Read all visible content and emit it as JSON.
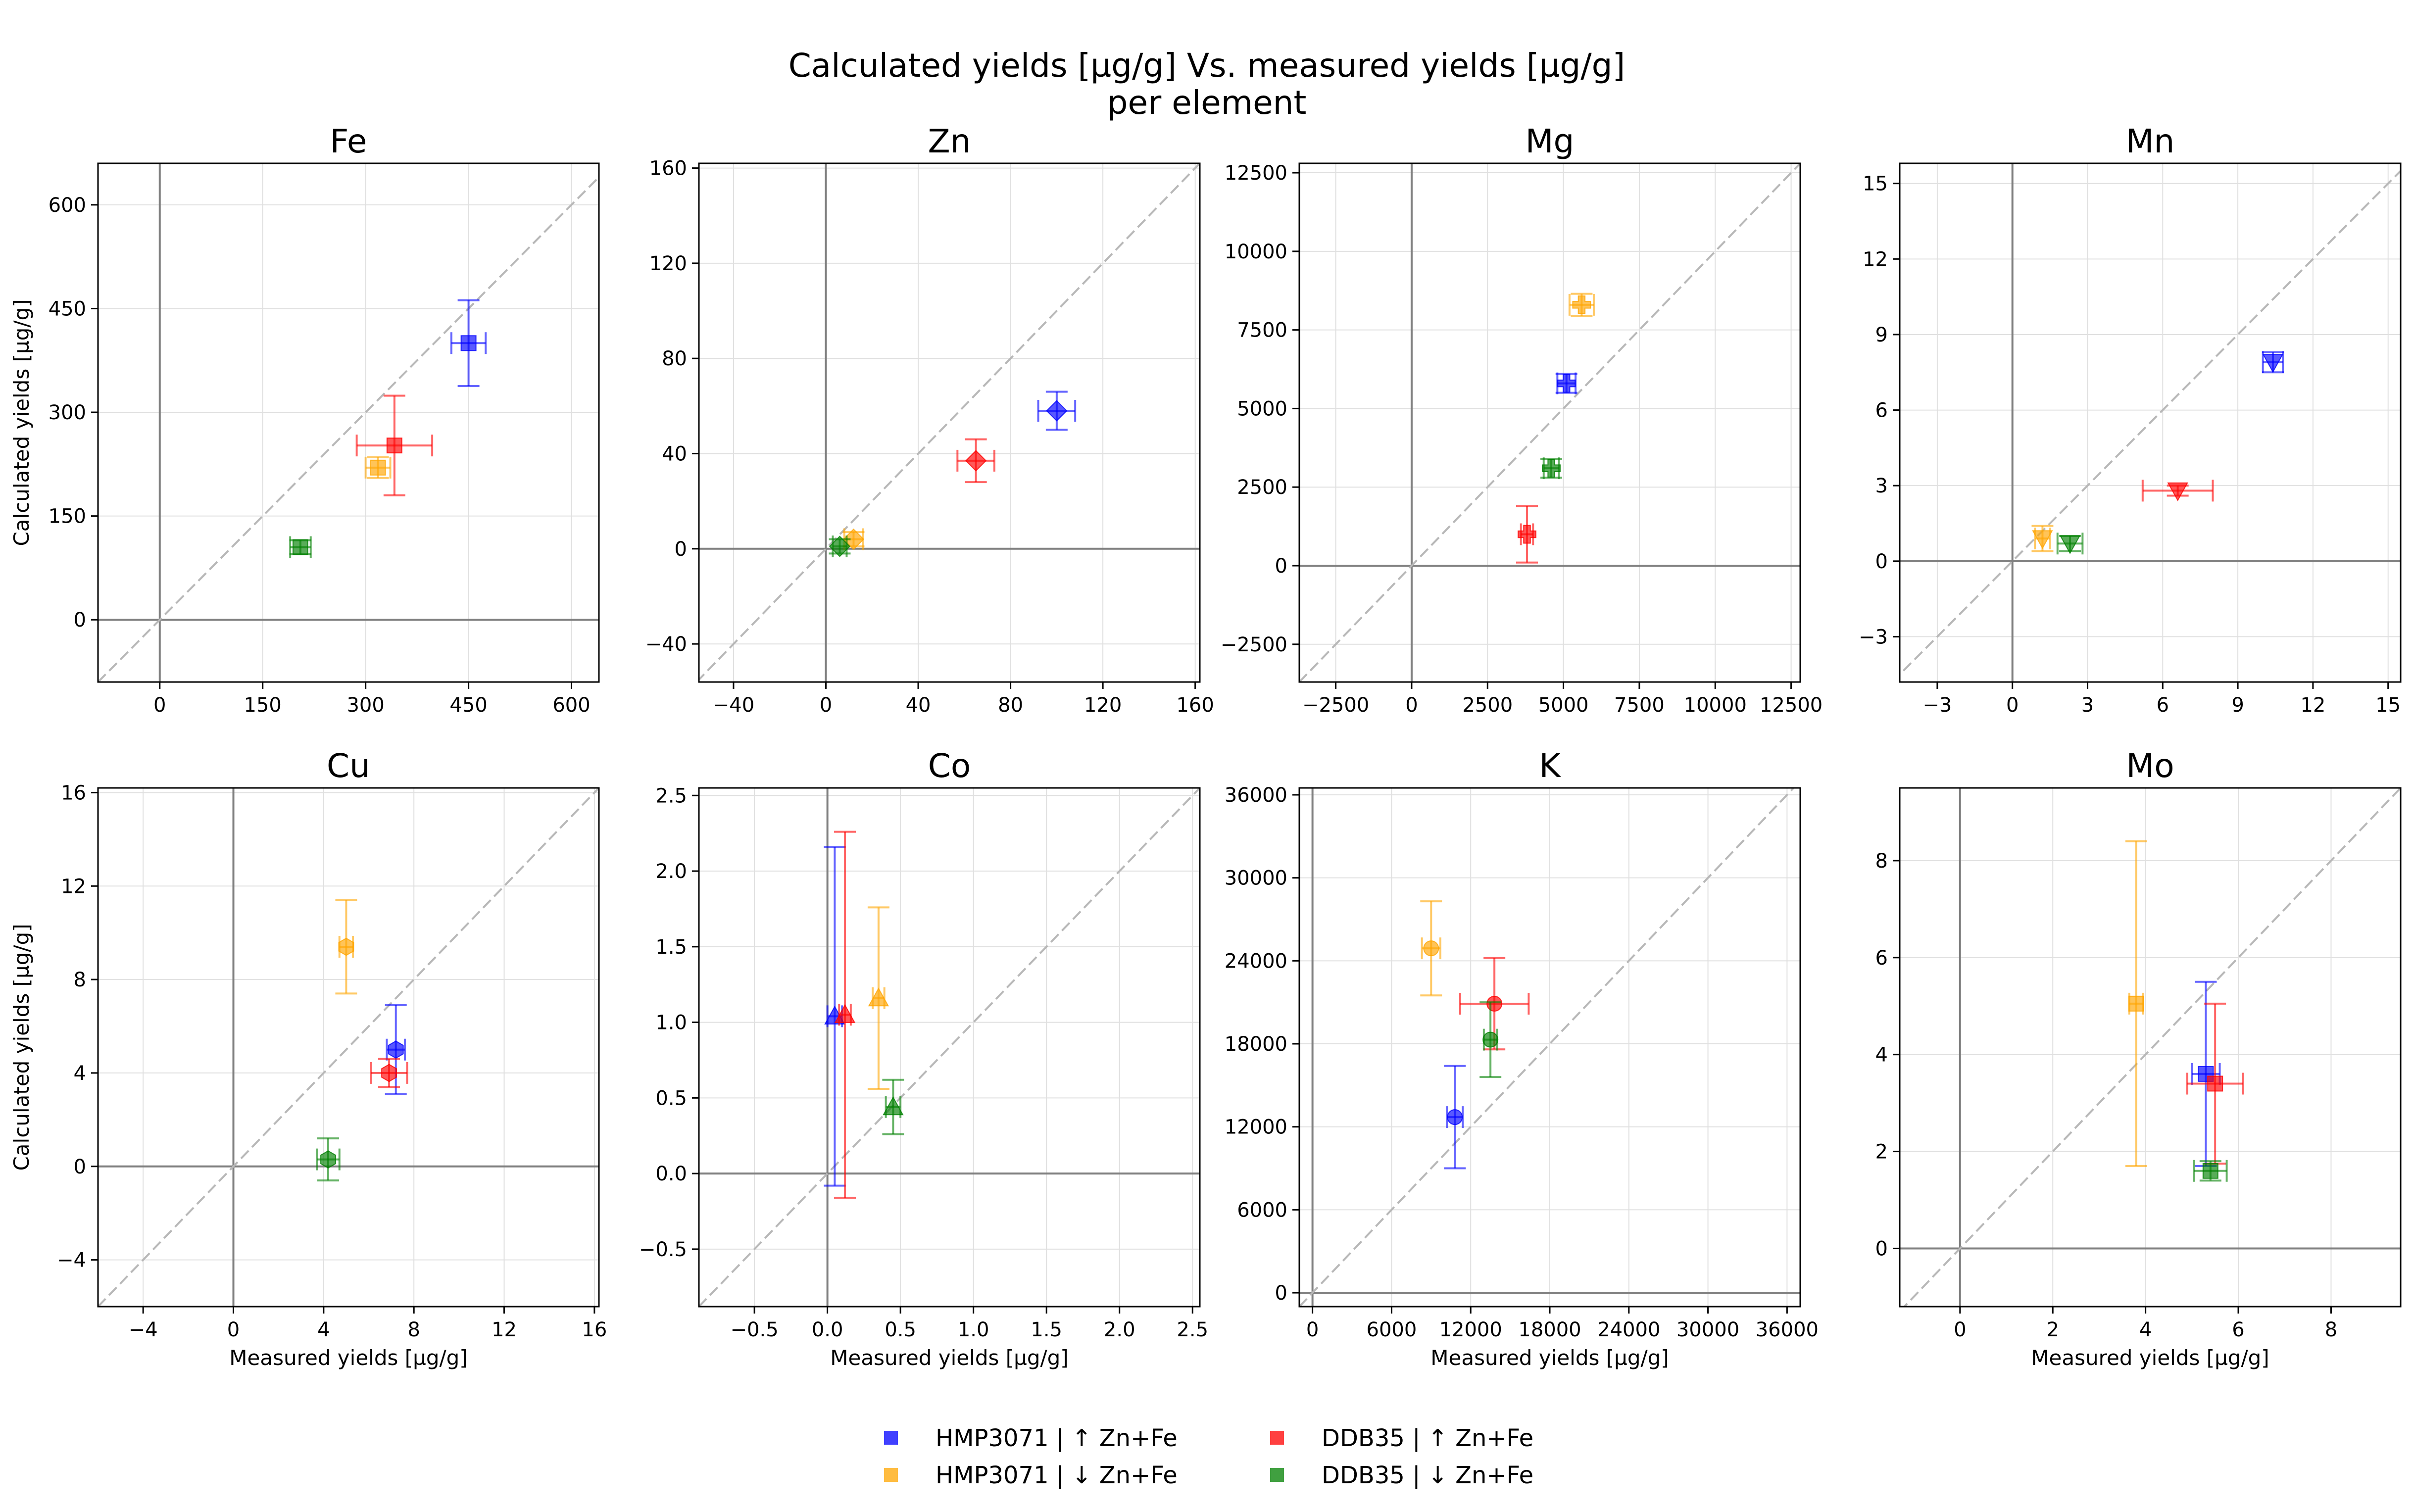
{
  "title_line1": "Calculated yields [µg/g] Vs. measured yields [µg/g]",
  "title_line2": "per element",
  "colors": {
    "HMP3071_up": "#0000ff",
    "HMP3071_down": "#ffa500",
    "DDB35_up": "#ff0000",
    "DDB35_down": "#008000"
  },
  "legend": [
    {
      "key": "HMP3071_up",
      "label": "HMP3071  |  ↑ Zn+Fe"
    },
    {
      "key": "HMP3071_down",
      "label": "HMP3071  |  ↓ Zn+Fe"
    },
    {
      "key": "DDB35_up",
      "label": "DDB35  |  ↑ Zn+Fe"
    },
    {
      "key": "DDB35_down",
      "label": "DDB35  |  ↓ Zn+Fe"
    }
  ],
  "chart_data": [
    {
      "type": "scatter",
      "title": "Fe",
      "xlabel": "",
      "ylabel": "Calculated yields [µg/g]",
      "marker": "square",
      "xlim": [
        -90,
        640
      ],
      "ylim": [
        -90,
        660
      ],
      "xticks": [
        0,
        150,
        300,
        450,
        600
      ],
      "xtick_labels": [
        "0",
        "150",
        "300",
        "450",
        "600"
      ],
      "yticks": [
        0,
        150,
        300,
        450,
        600
      ],
      "ytick_labels": [
        "0",
        "150",
        "300",
        "450",
        "600"
      ],
      "points": [
        {
          "series": "HMP3071_up",
          "x": 450,
          "y": 400,
          "xerr": 25,
          "yerr": 62
        },
        {
          "series": "HMP3071_down",
          "x": 318,
          "y": 220,
          "xerr": 18,
          "yerr": 15
        },
        {
          "series": "DDB35_up",
          "x": 342,
          "y": 252,
          "xerr": 55,
          "yerr": 72
        },
        {
          "series": "DDB35_down",
          "x": 205,
          "y": 105,
          "xerr": 15,
          "yerr": 10
        }
      ]
    },
    {
      "type": "scatter",
      "title": "Zn",
      "xlabel": "",
      "ylabel": "",
      "marker": "diamond",
      "xlim": [
        -55,
        162
      ],
      "ylim": [
        -56,
        162
      ],
      "xticks": [
        -40,
        0,
        40,
        80,
        120,
        160
      ],
      "xtick_labels": [
        "−40",
        "0",
        "40",
        "80",
        "120",
        "160"
      ],
      "yticks": [
        -40,
        0,
        40,
        80,
        120,
        160
      ],
      "ytick_labels": [
        "−40",
        "0",
        "40",
        "80",
        "120",
        "160"
      ],
      "points": [
        {
          "series": "HMP3071_up",
          "x": 100,
          "y": 58,
          "xerr": 8,
          "yerr": 8
        },
        {
          "series": "HMP3071_down",
          "x": 12,
          "y": 4,
          "xerr": 4,
          "yerr": 3
        },
        {
          "series": "DDB35_up",
          "x": 65,
          "y": 37,
          "xerr": 8,
          "yerr": 9
        },
        {
          "series": "DDB35_down",
          "x": 6,
          "y": 1,
          "xerr": 3,
          "yerr": 3
        }
      ]
    },
    {
      "type": "scatter",
      "title": "Mg",
      "xlabel": "",
      "ylabel": "",
      "marker": "plus",
      "xlim": [
        -3700,
        12800
      ],
      "ylim": [
        -3700,
        12800
      ],
      "xticks": [
        -2500,
        0,
        2500,
        5000,
        7500,
        10000,
        12500
      ],
      "xtick_labels": [
        "−2500",
        "0",
        "2500",
        "5000",
        "7500",
        "10000",
        "12500"
      ],
      "yticks": [
        -2500,
        0,
        2500,
        5000,
        7500,
        10000,
        12500
      ],
      "ytick_labels": [
        "−2500",
        "0",
        "2500",
        "5000",
        "7500",
        "10000",
        "12500"
      ],
      "points": [
        {
          "series": "HMP3071_up",
          "x": 5100,
          "y": 5800,
          "xerr": 300,
          "yerr": 300
        },
        {
          "series": "HMP3071_down",
          "x": 5600,
          "y": 8300,
          "xerr": 400,
          "yerr": 350
        },
        {
          "series": "DDB35_up",
          "x": 3800,
          "y": 1000,
          "xerr": 200,
          "yerr": 900
        },
        {
          "series": "DDB35_down",
          "x": 4600,
          "y": 3100,
          "xerr": 250,
          "yerr": 300
        }
      ]
    },
    {
      "type": "scatter",
      "title": "Mn",
      "xlabel": "",
      "ylabel": "",
      "marker": "triangle-down",
      "xlim": [
        -4.5,
        15.5
      ],
      "ylim": [
        -4.8,
        15.8
      ],
      "xticks": [
        -3,
        0,
        3,
        6,
        9,
        12,
        15
      ],
      "xtick_labels": [
        "−3",
        "0",
        "3",
        "6",
        "9",
        "12",
        "15"
      ],
      "yticks": [
        -3,
        0,
        3,
        6,
        9,
        12,
        15
      ],
      "ytick_labels": [
        "−3",
        "0",
        "3",
        "6",
        "9",
        "12",
        "15"
      ],
      "points": [
        {
          "series": "HMP3071_up",
          "x": 10.4,
          "y": 7.9,
          "xerr": 0.4,
          "yerr": 0.4
        },
        {
          "series": "HMP3071_down",
          "x": 1.2,
          "y": 0.9,
          "xerr": 0.3,
          "yerr": 0.5
        },
        {
          "series": "DDB35_up",
          "x": 6.6,
          "y": 2.8,
          "xerr": 1.4,
          "yerr": 0.2
        },
        {
          "series": "DDB35_down",
          "x": 2.3,
          "y": 0.7,
          "xerr": 0.5,
          "yerr": 0.3
        }
      ]
    },
    {
      "type": "scatter",
      "title": "Cu",
      "xlabel": "Measured yields [µg/g]",
      "ylabel": "Calculated yields [µg/g]",
      "marker": "hexagon",
      "xlim": [
        -6,
        16.2
      ],
      "ylim": [
        -6,
        16.2
      ],
      "xticks": [
        -4,
        0,
        4,
        8,
        12,
        16
      ],
      "xtick_labels": [
        "−4",
        "0",
        "4",
        "8",
        "12",
        "16"
      ],
      "yticks": [
        -4,
        0,
        4,
        8,
        12,
        16
      ],
      "ytick_labels": [
        "−4",
        "0",
        "4",
        "8",
        "12",
        "16"
      ],
      "points": [
        {
          "series": "HMP3071_up",
          "x": 7.2,
          "y": 5.0,
          "xerr": 0.4,
          "yerr": 1.9
        },
        {
          "series": "HMP3071_down",
          "x": 5.0,
          "y": 9.4,
          "xerr": 0.3,
          "yerr": 2.0
        },
        {
          "series": "DDB35_up",
          "x": 6.9,
          "y": 4.0,
          "xerr": 0.8,
          "yerr": 0.6
        },
        {
          "series": "DDB35_down",
          "x": 4.2,
          "y": 0.3,
          "xerr": 0.5,
          "yerr": 0.9
        }
      ]
    },
    {
      "type": "scatter",
      "title": "Co",
      "xlabel": "Measured yields [µg/g]",
      "ylabel": "",
      "marker": "triangle-up",
      "xlim": [
        -0.88,
        2.55
      ],
      "ylim": [
        -0.88,
        2.55
      ],
      "xticks": [
        -0.5,
        0,
        0.5,
        1,
        1.5,
        2,
        2.5
      ],
      "xtick_labels": [
        "−0.5",
        "0.0",
        "0.5",
        "1.0",
        "1.5",
        "2.0",
        "2.5"
      ],
      "yticks": [
        -0.5,
        0,
        0.5,
        1,
        1.5,
        2,
        2.5
      ],
      "ytick_labels": [
        "−0.5",
        "0.0",
        "0.5",
        "1.0",
        "1.5",
        "2.0",
        "2.5"
      ],
      "points": [
        {
          "series": "HMP3071_up",
          "x": 0.05,
          "y": 1.04,
          "xerr": 0.05,
          "yerr": 1.12
        },
        {
          "series": "HMP3071_down",
          "x": 0.35,
          "y": 1.16,
          "xerr": 0.04,
          "yerr": 0.6
        },
        {
          "series": "DDB35_up",
          "x": 0.12,
          "y": 1.05,
          "xerr": 0.04,
          "yerr": 1.21
        },
        {
          "series": "DDB35_down",
          "x": 0.45,
          "y": 0.44,
          "xerr": 0.05,
          "yerr": 0.18
        }
      ]
    },
    {
      "type": "scatter",
      "title": "K",
      "xlabel": "Measured yields [µg/g]",
      "ylabel": "",
      "marker": "circle",
      "xlim": [
        -1000,
        37000
      ],
      "ylim": [
        -1000,
        36500
      ],
      "xticks": [
        0,
        6000,
        12000,
        18000,
        24000,
        30000,
        36000
      ],
      "xtick_labels": [
        "0",
        "6000",
        "12000",
        "18000",
        "24000",
        "30000",
        "36000"
      ],
      "yticks": [
        0,
        6000,
        12000,
        18000,
        24000,
        30000,
        36000
      ],
      "ytick_labels": [
        "0",
        "6000",
        "12000",
        "18000",
        "24000",
        "30000",
        "36000"
      ],
      "points": [
        {
          "series": "HMP3071_up",
          "x": 10800,
          "y": 12700,
          "xerr": 600,
          "yerr": 3700
        },
        {
          "series": "HMP3071_down",
          "x": 9000,
          "y": 24900,
          "xerr": 700,
          "yerr": 3400
        },
        {
          "series": "DDB35_up",
          "x": 13800,
          "y": 20900,
          "xerr": 2600,
          "yerr": 3300
        },
        {
          "series": "DDB35_down",
          "x": 13500,
          "y": 18300,
          "xerr": 500,
          "yerr": 2700
        }
      ]
    },
    {
      "type": "scatter",
      "title": "Mo",
      "xlabel": "Measured yields [µg/g]",
      "ylabel": "",
      "marker": "square",
      "xlim": [
        -1.3,
        9.5
      ],
      "ylim": [
        -1.2,
        9.5
      ],
      "xticks": [
        0,
        2,
        4,
        6,
        8
      ],
      "xtick_labels": [
        "0",
        "2",
        "4",
        "6",
        "8"
      ],
      "yticks": [
        0,
        2,
        4,
        6,
        8
      ],
      "ytick_labels": [
        "0",
        "2",
        "4",
        "6",
        "8"
      ],
      "points": [
        {
          "series": "HMP3071_up",
          "x": 5.3,
          "y": 3.6,
          "xerr": 0.3,
          "yerr": 1.9
        },
        {
          "series": "HMP3071_down",
          "x": 3.8,
          "y": 5.05,
          "xerr": 0.15,
          "yerr": 3.35
        },
        {
          "series": "DDB35_up",
          "x": 5.5,
          "y": 3.4,
          "xerr": 0.6,
          "yerr": 1.65
        },
        {
          "series": "DDB35_down",
          "x": 5.4,
          "y": 1.6,
          "xerr": 0.35,
          "yerr": 0.2
        }
      ]
    }
  ]
}
